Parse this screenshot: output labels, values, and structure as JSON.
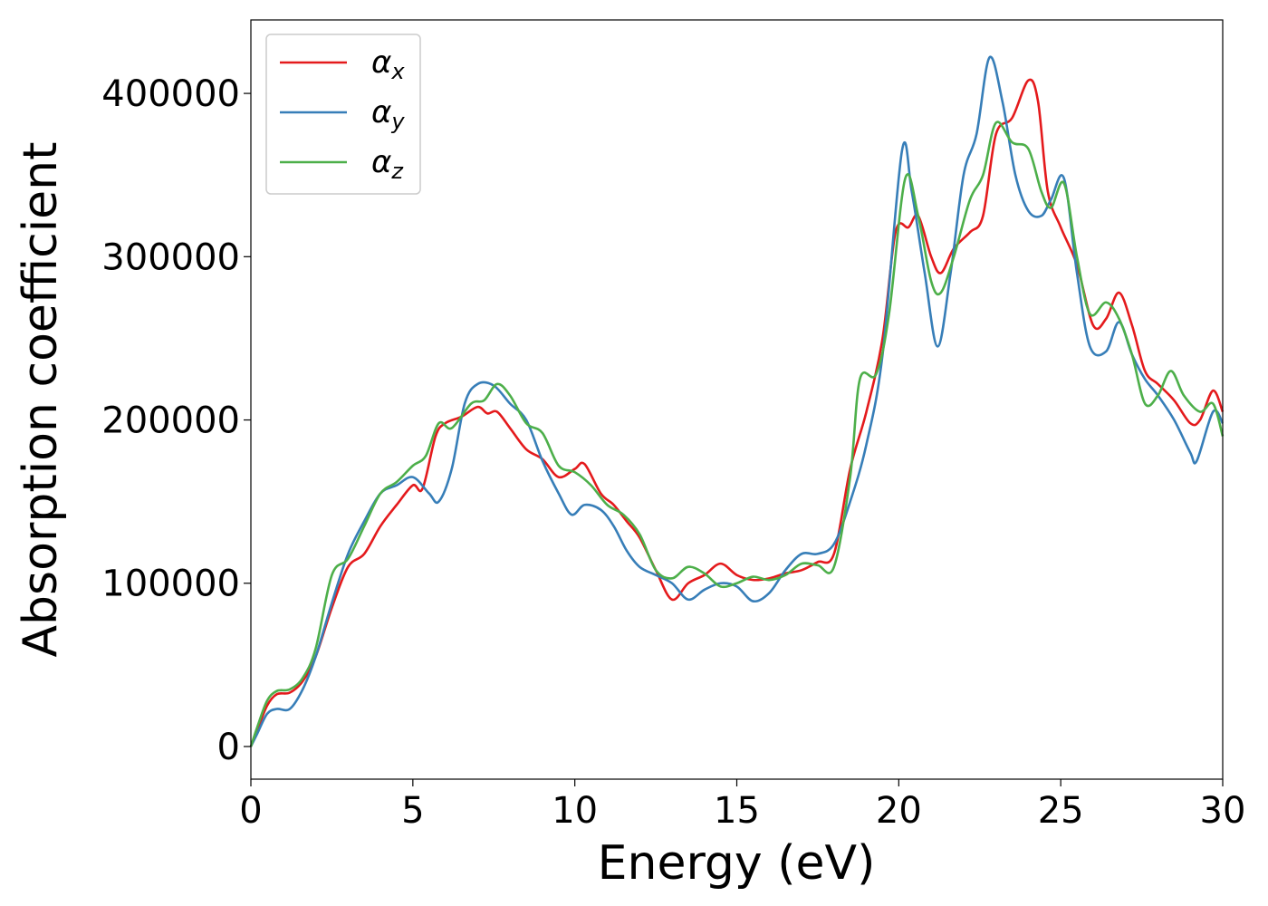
{
  "chart_data": {
    "type": "line",
    "title": "",
    "xlabel": "Energy (eV)",
    "ylabel": "Absorption coefficient",
    "xlim": [
      0,
      30
    ],
    "ylim": [
      -20000,
      445000
    ],
    "xticks": [
      0,
      5,
      10,
      15,
      20,
      25,
      30
    ],
    "xtick_labels": [
      "0",
      "5",
      "10",
      "15",
      "20",
      "25",
      "30"
    ],
    "yticks": [
      0,
      100000,
      200000,
      300000,
      400000
    ],
    "ytick_labels": [
      "0",
      "100000",
      "200000",
      "300000",
      "400000"
    ],
    "grid": false,
    "legend": {
      "position": "top-left"
    },
    "series": [
      {
        "name": "α",
        "subscript": "x",
        "color": "#e41a1c",
        "points": [
          [
            0,
            0
          ],
          [
            0.2,
            10000
          ],
          [
            0.5,
            25000
          ],
          [
            0.8,
            32000
          ],
          [
            1.2,
            33000
          ],
          [
            1.6,
            40000
          ],
          [
            2.0,
            55000
          ],
          [
            2.5,
            85000
          ],
          [
            3.0,
            110000
          ],
          [
            3.5,
            118000
          ],
          [
            4.0,
            135000
          ],
          [
            4.5,
            148000
          ],
          [
            5.0,
            160000
          ],
          [
            5.3,
            158000
          ],
          [
            5.7,
            190000
          ],
          [
            6.0,
            198000
          ],
          [
            6.5,
            202000
          ],
          [
            7.0,
            208000
          ],
          [
            7.3,
            204000
          ],
          [
            7.6,
            205000
          ],
          [
            8.0,
            195000
          ],
          [
            8.5,
            182000
          ],
          [
            9.0,
            176000
          ],
          [
            9.5,
            165000
          ],
          [
            10.0,
            170000
          ],
          [
            10.3,
            173000
          ],
          [
            10.8,
            155000
          ],
          [
            11.2,
            148000
          ],
          [
            11.6,
            138000
          ],
          [
            12.0,
            128000
          ],
          [
            12.5,
            108000
          ],
          [
            13.0,
            90000
          ],
          [
            13.5,
            100000
          ],
          [
            14.0,
            105000
          ],
          [
            14.5,
            112000
          ],
          [
            15.0,
            105000
          ],
          [
            15.5,
            102000
          ],
          [
            16.0,
            103000
          ],
          [
            16.5,
            106000
          ],
          [
            17.0,
            108000
          ],
          [
            17.5,
            113000
          ],
          [
            18.0,
            118000
          ],
          [
            18.5,
            170000
          ],
          [
            19.0,
            205000
          ],
          [
            19.5,
            250000
          ],
          [
            19.9,
            315000
          ],
          [
            20.3,
            318000
          ],
          [
            20.6,
            325000
          ],
          [
            21.0,
            300000
          ],
          [
            21.3,
            290000
          ],
          [
            21.7,
            305000
          ],
          [
            22.2,
            315000
          ],
          [
            22.6,
            325000
          ],
          [
            23.0,
            375000
          ],
          [
            23.5,
            385000
          ],
          [
            24.0,
            408000
          ],
          [
            24.3,
            395000
          ],
          [
            24.6,
            340000
          ],
          [
            25.0,
            318000
          ],
          [
            25.5,
            295000
          ],
          [
            26.0,
            258000
          ],
          [
            26.4,
            262000
          ],
          [
            26.8,
            278000
          ],
          [
            27.2,
            258000
          ],
          [
            27.6,
            230000
          ],
          [
            28.0,
            222000
          ],
          [
            28.5,
            212000
          ],
          [
            29.0,
            198000
          ],
          [
            29.3,
            200000
          ],
          [
            29.7,
            218000
          ],
          [
            30.0,
            205000
          ]
        ]
      },
      {
        "name": "α",
        "subscript": "y",
        "color": "#377eb8",
        "points": [
          [
            0,
            0
          ],
          [
            0.2,
            8000
          ],
          [
            0.5,
            20000
          ],
          [
            0.8,
            23000
          ],
          [
            1.2,
            23000
          ],
          [
            1.6,
            35000
          ],
          [
            2.0,
            55000
          ],
          [
            2.5,
            88000
          ],
          [
            3.0,
            118000
          ],
          [
            3.5,
            138000
          ],
          [
            4.0,
            155000
          ],
          [
            4.5,
            160000
          ],
          [
            5.0,
            165000
          ],
          [
            5.5,
            155000
          ],
          [
            5.8,
            150000
          ],
          [
            6.2,
            170000
          ],
          [
            6.6,
            210000
          ],
          [
            7.0,
            222000
          ],
          [
            7.5,
            221000
          ],
          [
            8.0,
            210000
          ],
          [
            8.5,
            200000
          ],
          [
            9.0,
            175000
          ],
          [
            9.5,
            155000
          ],
          [
            9.9,
            142000
          ],
          [
            10.3,
            148000
          ],
          [
            10.8,
            145000
          ],
          [
            11.2,
            135000
          ],
          [
            11.6,
            120000
          ],
          [
            12.0,
            110000
          ],
          [
            12.5,
            105000
          ],
          [
            13.0,
            100000
          ],
          [
            13.5,
            90000
          ],
          [
            14.0,
            96000
          ],
          [
            14.5,
            100000
          ],
          [
            15.0,
            98000
          ],
          [
            15.5,
            89000
          ],
          [
            16.0,
            94000
          ],
          [
            16.5,
            108000
          ],
          [
            17.0,
            118000
          ],
          [
            17.5,
            118000
          ],
          [
            18.0,
            124000
          ],
          [
            18.5,
            150000
          ],
          [
            19.0,
            185000
          ],
          [
            19.5,
            240000
          ],
          [
            20.1,
            365000
          ],
          [
            20.4,
            340000
          ],
          [
            20.8,
            290000
          ],
          [
            21.2,
            245000
          ],
          [
            21.6,
            290000
          ],
          [
            22.0,
            350000
          ],
          [
            22.4,
            375000
          ],
          [
            22.8,
            422000
          ],
          [
            23.2,
            395000
          ],
          [
            23.6,
            350000
          ],
          [
            24.0,
            328000
          ],
          [
            24.4,
            325000
          ],
          [
            24.7,
            335000
          ],
          [
            25.1,
            348000
          ],
          [
            25.5,
            290000
          ],
          [
            25.9,
            245000
          ],
          [
            26.4,
            242000
          ],
          [
            26.8,
            260000
          ],
          [
            27.2,
            240000
          ],
          [
            27.6,
            225000
          ],
          [
            28.0,
            215000
          ],
          [
            28.5,
            200000
          ],
          [
            29.0,
            180000
          ],
          [
            29.2,
            175000
          ],
          [
            29.7,
            205000
          ],
          [
            30.0,
            198000
          ]
        ]
      },
      {
        "name": "α",
        "subscript": "z",
        "color": "#4daf4a",
        "points": [
          [
            0,
            0
          ],
          [
            0.2,
            12000
          ],
          [
            0.5,
            28000
          ],
          [
            0.8,
            34000
          ],
          [
            1.2,
            35000
          ],
          [
            1.6,
            42000
          ],
          [
            2.0,
            60000
          ],
          [
            2.5,
            105000
          ],
          [
            3.0,
            115000
          ],
          [
            3.5,
            135000
          ],
          [
            4.0,
            155000
          ],
          [
            4.5,
            162000
          ],
          [
            5.0,
            172000
          ],
          [
            5.4,
            178000
          ],
          [
            5.8,
            198000
          ],
          [
            6.2,
            195000
          ],
          [
            6.8,
            210000
          ],
          [
            7.2,
            212000
          ],
          [
            7.6,
            222000
          ],
          [
            8.0,
            215000
          ],
          [
            8.5,
            198000
          ],
          [
            9.0,
            192000
          ],
          [
            9.5,
            172000
          ],
          [
            10.0,
            168000
          ],
          [
            10.5,
            160000
          ],
          [
            11.0,
            148000
          ],
          [
            11.5,
            142000
          ],
          [
            12.0,
            130000
          ],
          [
            12.5,
            108000
          ],
          [
            13.0,
            103000
          ],
          [
            13.5,
            110000
          ],
          [
            14.0,
            106000
          ],
          [
            14.5,
            98000
          ],
          [
            15.0,
            100000
          ],
          [
            15.5,
            104000
          ],
          [
            16.0,
            102000
          ],
          [
            16.5,
            105000
          ],
          [
            17.0,
            112000
          ],
          [
            17.5,
            111000
          ],
          [
            18.0,
            110000
          ],
          [
            18.5,
            165000
          ],
          [
            18.8,
            225000
          ],
          [
            19.3,
            228000
          ],
          [
            19.7,
            265000
          ],
          [
            20.2,
            348000
          ],
          [
            20.6,
            325000
          ],
          [
            21.0,
            285000
          ],
          [
            21.3,
            278000
          ],
          [
            21.7,
            300000
          ],
          [
            22.2,
            335000
          ],
          [
            22.6,
            350000
          ],
          [
            23.0,
            382000
          ],
          [
            23.5,
            370000
          ],
          [
            24.0,
            366000
          ],
          [
            24.4,
            340000
          ],
          [
            24.7,
            330000
          ],
          [
            25.1,
            345000
          ],
          [
            25.5,
            300000
          ],
          [
            25.9,
            265000
          ],
          [
            26.4,
            272000
          ],
          [
            26.8,
            262000
          ],
          [
            27.2,
            240000
          ],
          [
            27.6,
            210000
          ],
          [
            28.0,
            215000
          ],
          [
            28.4,
            230000
          ],
          [
            28.8,
            215000
          ],
          [
            29.3,
            205000
          ],
          [
            29.7,
            210000
          ],
          [
            30.0,
            190000
          ]
        ]
      }
    ]
  }
}
